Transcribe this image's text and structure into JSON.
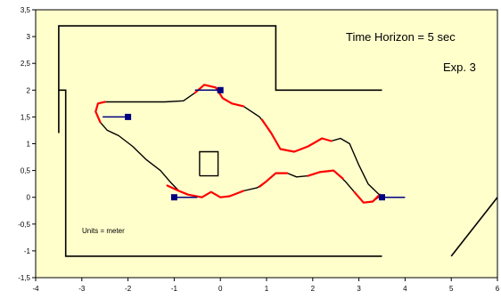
{
  "chart_data": {
    "type": "line",
    "xlim": [
      -4,
      6
    ],
    "ylim": [
      -1.5,
      3.5
    ],
    "x_ticks": [
      "-4",
      "-3",
      "-2",
      "-1",
      "0",
      "1",
      "2",
      "3",
      "4",
      "5",
      "6"
    ],
    "y_ticks": [
      "-1,5",
      "-1",
      "-0,5",
      "0",
      "0,5",
      "1",
      "1,5",
      "2",
      "2,5",
      "3",
      "3,5"
    ],
    "grid": false,
    "colors": {
      "plot_background": "#ffffcc",
      "obstacle": "#000000",
      "path": "#000000",
      "highlight": "#ff0000",
      "robot": "#000080"
    },
    "annotations": {
      "time_horizon": "Time Horizon = 5 sec",
      "experiment": "Exp. 3",
      "units": "Units = meter"
    },
    "walls": [
      [
        [
          -3.5,
          1.2
        ],
        [
          -3.5,
          3.2
        ],
        [
          1.2,
          3.2
        ],
        [
          1.2,
          2.0
        ],
        [
          3.5,
          2.0
        ]
      ],
      [
        [
          -3.5,
          2.0
        ],
        [
          -3.35,
          2.0
        ],
        [
          -3.35,
          -1.1
        ],
        [
          3.5,
          -1.1
        ]
      ],
      [
        [
          5.0,
          -1.1
        ],
        [
          6.0,
          0.0
        ]
      ]
    ],
    "obstacle_box": [
      [
        -0.45,
        0.4
      ],
      [
        -0.05,
        0.4
      ],
      [
        -0.05,
        0.85
      ],
      [
        -0.45,
        0.85
      ],
      [
        -0.45,
        0.4
      ]
    ],
    "path_upper": [
      [
        3.5,
        0.0
      ],
      [
        3.2,
        0.25
      ],
      [
        3.0,
        0.6
      ],
      [
        2.8,
        1.0
      ],
      [
        2.6,
        1.1
      ],
      [
        2.4,
        1.05
      ],
      [
        2.2,
        1.1
      ],
      [
        1.9,
        0.95
      ],
      [
        1.6,
        0.85
      ],
      [
        1.3,
        0.9
      ],
      [
        1.1,
        1.2
      ],
      [
        0.85,
        1.5
      ],
      [
        0.5,
        1.7
      ],
      [
        0.25,
        1.75
      ],
      [
        0.05,
        1.85
      ],
      [
        -0.1,
        2.05
      ],
      [
        -0.35,
        2.1
      ],
      [
        -0.55,
        1.95
      ],
      [
        -0.8,
        1.8
      ],
      [
        -1.2,
        1.78
      ],
      [
        -2.5,
        1.78
      ],
      [
        -2.65,
        1.75
      ],
      [
        -2.7,
        1.6
      ],
      [
        -2.6,
        1.4
      ],
      [
        -2.45,
        1.25
      ],
      [
        -2.2,
        1.15
      ],
      [
        -1.9,
        0.95
      ],
      [
        -1.6,
        0.7
      ],
      [
        -1.3,
        0.5
      ],
      [
        -1.1,
        0.3
      ],
      [
        -0.9,
        0.12
      ],
      [
        -0.7,
        0.05
      ],
      [
        -0.4,
        0.0
      ]
    ],
    "path_lower": [
      [
        -0.4,
        0.0
      ],
      [
        -0.2,
        0.1
      ],
      [
        0.0,
        0.0
      ],
      [
        0.2,
        0.02
      ],
      [
        0.5,
        0.12
      ],
      [
        0.8,
        0.18
      ],
      [
        1.0,
        0.3
      ],
      [
        1.2,
        0.45
      ],
      [
        1.45,
        0.45
      ],
      [
        1.65,
        0.38
      ],
      [
        1.9,
        0.4
      ],
      [
        2.15,
        0.47
      ],
      [
        2.45,
        0.5
      ],
      [
        2.7,
        0.3
      ],
      [
        2.9,
        0.1
      ],
      [
        3.1,
        -0.1
      ],
      [
        3.3,
        -0.08
      ],
      [
        3.5,
        0.05
      ]
    ],
    "highlight_segments": [
      [
        [
          -2.5,
          1.78
        ],
        [
          -2.65,
          1.75
        ],
        [
          -2.7,
          1.6
        ],
        [
          -2.6,
          1.4
        ]
      ],
      [
        [
          -0.55,
          1.95
        ],
        [
          -0.35,
          2.1
        ],
        [
          -0.1,
          2.05
        ],
        [
          0.05,
          1.85
        ],
        [
          0.25,
          1.75
        ],
        [
          0.5,
          1.7
        ]
      ],
      [
        [
          0.9,
          1.45
        ],
        [
          1.1,
          1.2
        ],
        [
          1.3,
          0.9
        ],
        [
          1.6,
          0.85
        ],
        [
          1.9,
          0.95
        ],
        [
          2.2,
          1.1
        ],
        [
          2.4,
          1.05
        ]
      ],
      [
        [
          -1.15,
          0.22
        ],
        [
          -0.9,
          0.12
        ],
        [
          -0.7,
          0.05
        ],
        [
          -0.4,
          0.0
        ],
        [
          -0.2,
          0.1
        ],
        [
          0.0,
          0.0
        ],
        [
          0.2,
          0.02
        ],
        [
          0.5,
          0.12
        ]
      ],
      [
        [
          0.85,
          0.2
        ],
        [
          1.0,
          0.3
        ],
        [
          1.2,
          0.45
        ],
        [
          1.45,
          0.45
        ]
      ],
      [
        [
          1.9,
          0.4
        ],
        [
          2.15,
          0.47
        ],
        [
          2.45,
          0.5
        ],
        [
          2.65,
          0.35
        ]
      ],
      [
        [
          2.9,
          0.1
        ],
        [
          3.1,
          -0.1
        ],
        [
          3.3,
          -0.08
        ],
        [
          3.45,
          0.05
        ]
      ]
    ],
    "robots": [
      {
        "x": -2.0,
        "y": 1.5,
        "dx": -0.55,
        "dy": 0.0
      },
      {
        "x": 0.0,
        "y": 2.0,
        "dx": -0.55,
        "dy": 0.0
      },
      {
        "x": -1.0,
        "y": 0.0,
        "dx": 0.5,
        "dy": 0.0
      },
      {
        "x": 3.5,
        "y": 0.0,
        "dx": 0.5,
        "dy": 0.0
      }
    ]
  }
}
